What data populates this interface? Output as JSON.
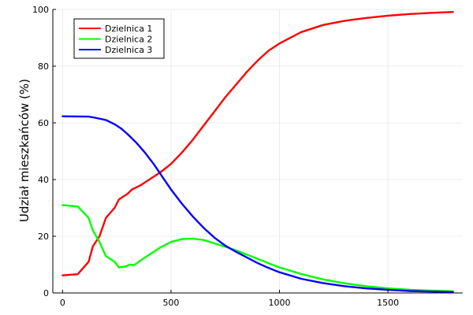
{
  "chart_data": {
    "type": "line",
    "ylabel": "Udział mieszkańców (%)",
    "xlabel": "",
    "xlim": [
      -45,
      1845
    ],
    "ylim": [
      0,
      100
    ],
    "x_ticks": [
      0,
      500,
      1000,
      1500
    ],
    "y_ticks": [
      0,
      20,
      40,
      60,
      80,
      100
    ],
    "x_tick_labels": [
      "0",
      "500",
      "1000",
      "1500"
    ],
    "y_tick_labels": [
      "0",
      "20",
      "40",
      "60",
      "80",
      "100"
    ],
    "grid": true,
    "legend_position": "top-left",
    "series": [
      {
        "name": "Dzielnica 1",
        "color": "#ff0000",
        "points": [
          [
            0,
            6.2
          ],
          [
            70,
            6.6
          ],
          [
            120,
            11
          ],
          [
            140,
            16.5
          ],
          [
            170,
            20
          ],
          [
            200,
            26.5
          ],
          [
            240,
            30
          ],
          [
            260,
            33
          ],
          [
            300,
            35
          ],
          [
            320,
            36.5
          ],
          [
            360,
            38
          ],
          [
            400,
            40
          ],
          [
            450,
            42.5
          ],
          [
            500,
            45.5
          ],
          [
            550,
            49.5
          ],
          [
            600,
            54
          ],
          [
            650,
            59
          ],
          [
            700,
            64
          ],
          [
            750,
            69
          ],
          [
            800,
            73.5
          ],
          [
            850,
            78
          ],
          [
            900,
            82
          ],
          [
            950,
            85.5
          ],
          [
            1000,
            88
          ],
          [
            1100,
            92
          ],
          [
            1200,
            94.5
          ],
          [
            1300,
            96
          ],
          [
            1400,
            97
          ],
          [
            1500,
            97.8
          ],
          [
            1600,
            98.4
          ],
          [
            1700,
            98.8
          ],
          [
            1800,
            99.1
          ]
        ]
      },
      {
        "name": "Dzielnica 2",
        "color": "#00ff00",
        "points": [
          [
            0,
            31
          ],
          [
            70,
            30.5
          ],
          [
            120,
            26.5
          ],
          [
            140,
            22
          ],
          [
            170,
            18
          ],
          [
            200,
            13
          ],
          [
            240,
            11
          ],
          [
            260,
            9
          ],
          [
            290,
            9.3
          ],
          [
            310,
            10
          ],
          [
            330,
            9.8
          ],
          [
            370,
            12
          ],
          [
            400,
            13.5
          ],
          [
            450,
            16
          ],
          [
            500,
            18
          ],
          [
            550,
            19
          ],
          [
            600,
            19.2
          ],
          [
            650,
            18.7
          ],
          [
            700,
            17.5
          ],
          [
            750,
            16.3
          ],
          [
            800,
            15
          ],
          [
            850,
            13.5
          ],
          [
            900,
            12
          ],
          [
            950,
            10.5
          ],
          [
            1000,
            9
          ],
          [
            1100,
            6.7
          ],
          [
            1200,
            4.8
          ],
          [
            1300,
            3.4
          ],
          [
            1400,
            2.4
          ],
          [
            1500,
            1.6
          ],
          [
            1600,
            1.1
          ],
          [
            1700,
            0.8
          ],
          [
            1800,
            0.6
          ]
        ]
      },
      {
        "name": "Dzielnica 3",
        "color": "#0000ff",
        "points": [
          [
            0,
            62.3
          ],
          [
            120,
            62.2
          ],
          [
            150,
            61.8
          ],
          [
            200,
            61
          ],
          [
            240,
            59.5
          ],
          [
            270,
            58
          ],
          [
            300,
            56
          ],
          [
            340,
            53
          ],
          [
            380,
            49.5
          ],
          [
            420,
            45.5
          ],
          [
            460,
            41
          ],
          [
            500,
            36.5
          ],
          [
            550,
            31.5
          ],
          [
            600,
            27
          ],
          [
            650,
            23
          ],
          [
            700,
            19.5
          ],
          [
            750,
            16.7
          ],
          [
            800,
            14.5
          ],
          [
            850,
            12.5
          ],
          [
            900,
            10.5
          ],
          [
            950,
            8.8
          ],
          [
            1000,
            7.3
          ],
          [
            1100,
            5
          ],
          [
            1200,
            3.5
          ],
          [
            1300,
            2.4
          ],
          [
            1400,
            1.6
          ],
          [
            1500,
            1.1
          ],
          [
            1600,
            0.7
          ],
          [
            1700,
            0.5
          ],
          [
            1800,
            0.3
          ]
        ]
      }
    ]
  }
}
